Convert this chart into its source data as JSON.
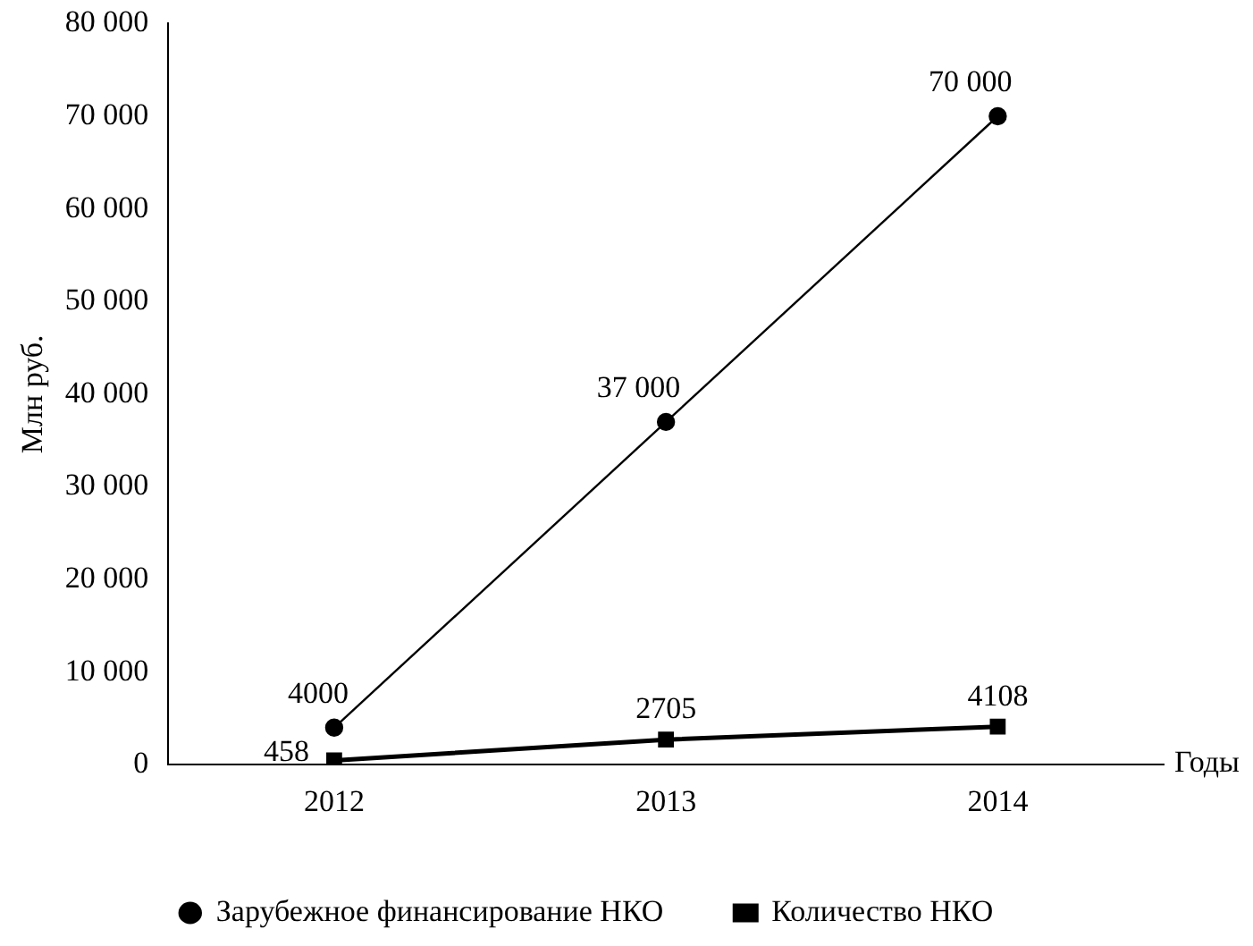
{
  "chart_data": {
    "type": "line",
    "xlabel": "Годы",
    "ylabel": "Млн руб.",
    "categories": [
      "2012",
      "2013",
      "2014"
    ],
    "series": [
      {
        "name": "Зарубежное финансирование НКО",
        "color": "#000000",
        "values": [
          4000,
          37000,
          70000
        ],
        "marker": "circle",
        "value_labels": [
          "4000",
          "37 000",
          "70 000"
        ]
      },
      {
        "name": "Количество НКО",
        "color": "#000000",
        "values": [
          458,
          2705,
          4108
        ],
        "marker": "square",
        "value_labels": [
          "458",
          "2705",
          "4108"
        ]
      }
    ],
    "ylim": [
      0,
      80000
    ],
    "yticks": [
      0,
      {
        "value": 10000,
        "label": "10 000"
      },
      {
        "value": 20000,
        "label": "20 000"
      },
      {
        "value": 30000,
        "label": "30 000"
      },
      {
        "value": 40000,
        "label": "40 000"
      },
      {
        "value": 50000,
        "label": "50 000"
      },
      {
        "value": 60000,
        "label": "60 000"
      },
      {
        "value": 70000,
        "label": "70 000"
      },
      {
        "value": 80000,
        "label": "80 000"
      }
    ],
    "grid": false,
    "legend": "bottom",
    "line_style": "solid"
  }
}
